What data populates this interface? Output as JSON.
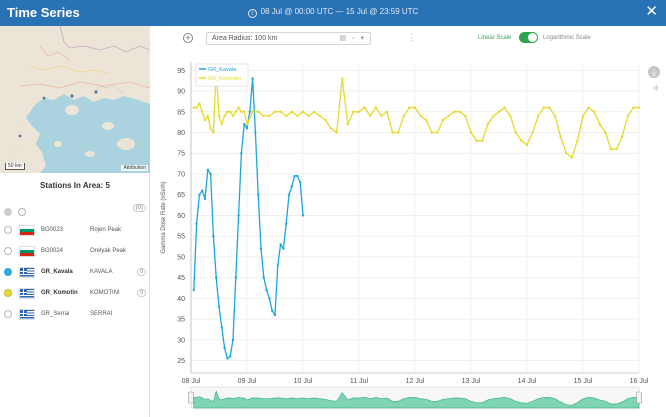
{
  "header": {
    "title": "Time Series",
    "range": "08 Jul @ 00:00 UTC — 15 Jul @ 23:59 UTC",
    "close": "✕"
  },
  "map": {
    "scale": "50 km",
    "attribution": "Attribution"
  },
  "left_panel": {
    "title": "Stations In Area: 5",
    "select_badge": "(0)",
    "stations": [
      {
        "id": "BG0023",
        "name": "Rojen Peak",
        "flag": "bg",
        "state": "off",
        "count": ""
      },
      {
        "id": "BG0024",
        "name": "Orelyak Peak",
        "flag": "bg",
        "state": "off",
        "count": ""
      },
      {
        "id": "GR_Kavala",
        "name": "KAVALA",
        "flag": "gr",
        "state": "blue",
        "count": "0"
      },
      {
        "id": "GR_Komotin",
        "name": "KOMOTINI",
        "flag": "gr",
        "state": "yellow",
        "count": "0"
      },
      {
        "id": "GR_Serrai",
        "name": "SERRAI",
        "flag": "gr",
        "state": "off",
        "count": ""
      }
    ]
  },
  "toolbar": {
    "radius_label": "Area Radius: 100 km",
    "linear": "Linear Scale",
    "log": "Logarithmic Scale"
  },
  "colors": {
    "header": "#2a72b6",
    "kavala": "#1ba6de",
    "komotini": "#e5da2c",
    "toggle": "#2ea650"
  },
  "chart_data": {
    "type": "line",
    "title": "",
    "ylabel": "Gamma Dose Rate (nSv/h)",
    "xlabel": "",
    "ylim": [
      22,
      97
    ],
    "yticks": [
      25,
      30,
      35,
      40,
      45,
      50,
      55,
      60,
      65,
      70,
      75,
      80,
      85,
      90,
      95
    ],
    "xlim": [
      8,
      16
    ],
    "xticks": [
      {
        "x": 8,
        "label": "08 Jul"
      },
      {
        "x": 9,
        "label": "09 Jul"
      },
      {
        "x": 10,
        "label": "10 Jul"
      },
      {
        "x": 11,
        "label": "11 Jul"
      },
      {
        "x": 12,
        "label": "12 Jul"
      },
      {
        "x": 13,
        "label": "13 Jul"
      },
      {
        "x": 14,
        "label": "14 Jul"
      },
      {
        "x": 15,
        "label": "15 Jul"
      },
      {
        "x": 16,
        "label": "16 Jul"
      }
    ],
    "grid": true,
    "legend": "top-left",
    "series": [
      {
        "name": "GR_Kavala",
        "color": "#1ba6de",
        "markers": true,
        "x": [
          8.05,
          8.1,
          8.15,
          8.2,
          8.25,
          8.3,
          8.35,
          8.4,
          8.45,
          8.5,
          8.55,
          8.6,
          8.65,
          8.7,
          8.75,
          8.8,
          8.85,
          8.9,
          8.95,
          9.0,
          9.05,
          9.1,
          9.15,
          9.2,
          9.25,
          9.3,
          9.35,
          9.4,
          9.45,
          9.5,
          9.55,
          9.6,
          9.65,
          9.7,
          9.75,
          9.8,
          9.85,
          9.9,
          9.95,
          10.0,
          10.05,
          10.1,
          10.15,
          10.2
        ],
        "y": [
          42,
          58,
          65,
          66,
          64,
          71,
          70,
          55,
          45,
          38,
          33,
          28,
          25.5,
          26,
          30,
          45,
          60,
          75,
          82,
          81,
          85,
          93,
          80,
          65,
          52,
          45,
          42,
          40,
          37,
          36,
          48,
          53,
          52,
          58,
          65,
          67,
          69.5,
          69.5,
          68,
          60,
          null,
          null,
          null,
          null
        ]
      },
      {
        "name": "GR_Komotini",
        "color": "#e5da2c",
        "markers": true,
        "x": [
          8.05,
          8.1,
          8.15,
          8.2,
          8.25,
          8.3,
          8.35,
          8.4,
          8.45,
          8.5,
          8.55,
          8.6,
          8.65,
          8.7,
          8.75,
          8.8,
          8.85,
          8.9,
          8.95,
          9.0,
          9.1,
          9.2,
          9.3,
          9.4,
          9.5,
          9.6,
          9.7,
          9.8,
          9.9,
          10.0,
          10.1,
          10.2,
          10.3,
          10.4,
          10.5,
          10.6,
          10.7,
          10.8,
          10.9,
          11.0,
          11.1,
          11.2,
          11.3,
          11.4,
          11.5,
          11.6,
          11.7,
          11.8,
          11.9,
          12.0,
          12.1,
          12.2,
          12.3,
          12.4,
          12.5,
          12.6,
          12.7,
          12.8,
          12.9,
          13.0,
          13.1,
          13.2,
          13.3,
          13.4,
          13.5,
          13.6,
          13.7,
          13.8,
          13.9,
          14.0,
          14.1,
          14.2,
          14.3,
          14.4,
          14.5,
          14.6,
          14.7,
          14.8,
          14.9,
          15.0,
          15.1,
          15.2,
          15.3,
          15.4,
          15.5,
          15.6,
          15.7,
          15.8,
          15.9,
          16.0
        ],
        "y": [
          86,
          86,
          87,
          85,
          83,
          84,
          81,
          80,
          95,
          84,
          82,
          84,
          85,
          85,
          84,
          85,
          86,
          85,
          85,
          82,
          85,
          85,
          84,
          84,
          85,
          85,
          84,
          85,
          84,
          85,
          84,
          85,
          84,
          83,
          81,
          80,
          93,
          82,
          85,
          85,
          86,
          84,
          86,
          84,
          85,
          80,
          80,
          84,
          86,
          86,
          84,
          83,
          80,
          80,
          83,
          84,
          85,
          85,
          84,
          80,
          78,
          78,
          82,
          84,
          85,
          86,
          84,
          80,
          78,
          77,
          80,
          84,
          86,
          86,
          84,
          79,
          75,
          74,
          78,
          84,
          86,
          85,
          82,
          80,
          76,
          76,
          79,
          84,
          86,
          86
        ]
      }
    ]
  }
}
